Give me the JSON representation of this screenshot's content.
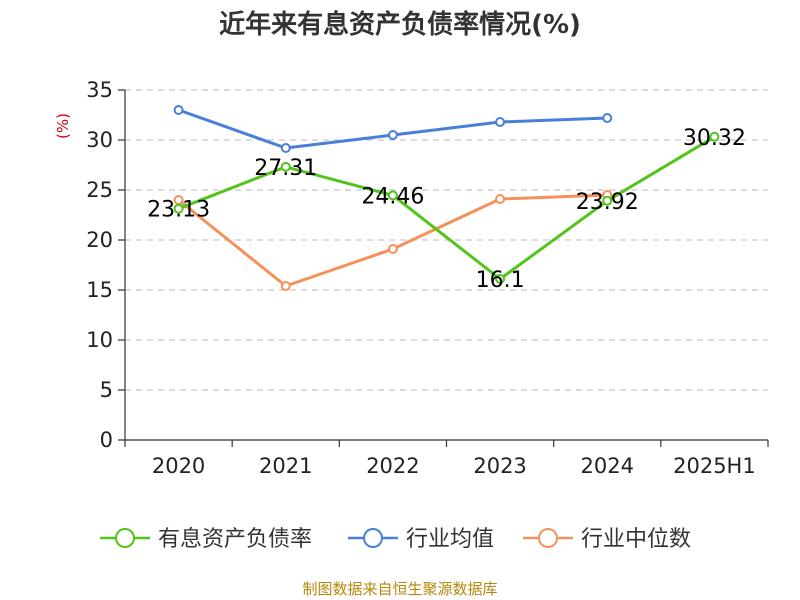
{
  "chart_data": {
    "type": "line",
    "title": "近年来有息资产负债率情况(%)",
    "y_unit": "(%)",
    "categories": [
      "2020",
      "2021",
      "2022",
      "2023",
      "2024",
      "2025H1"
    ],
    "ylim": [
      0,
      35
    ],
    "y_ticks": [
      0,
      5,
      10,
      15,
      20,
      25,
      30,
      35
    ],
    "grid": true,
    "legend_position": "bottom",
    "series": [
      {
        "name": "有息资产负债率",
        "color": "#52c41a",
        "values": [
          23.13,
          27.31,
          24.46,
          16.1,
          23.92,
          30.32
        ],
        "labels": [
          "23.13",
          "27.31",
          "24.46",
          "16.1",
          "23.92",
          "30.32"
        ]
      },
      {
        "name": "行业均值",
        "color": "#4a7fd9",
        "values": [
          33.0,
          29.2,
          30.5,
          31.8,
          32.2,
          null
        ]
      },
      {
        "name": "行业中位数",
        "color": "#f5915a",
        "values": [
          24.0,
          15.4,
          19.1,
          24.1,
          24.5,
          null
        ]
      }
    ]
  },
  "source": "制图数据来自恒生聚源数据库"
}
